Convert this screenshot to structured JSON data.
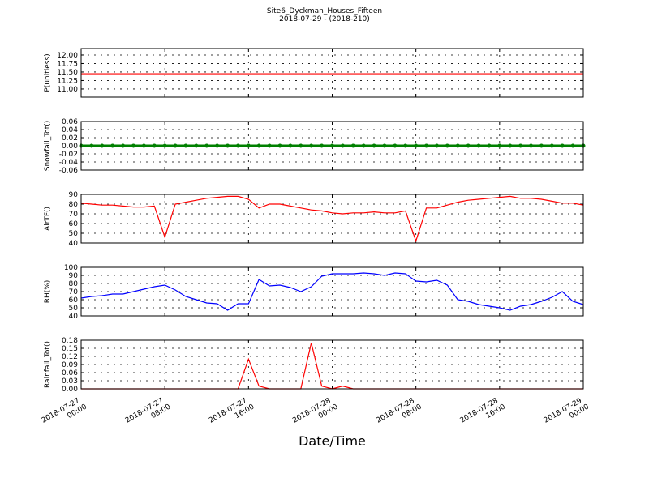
{
  "title": "Site6_Dyckman_Houses_Fifteen",
  "subtitle": "2018-07-29 - (2018-210)",
  "chart_data": [
    {
      "type": "line",
      "ylabel": "P(unitless)",
      "grid": true,
      "xlim": [
        "2018-07-27 00:00",
        "2018-07-29 00:00"
      ],
      "xticks": [
        "2018-07-27 00:00",
        "2018-07-27 08:00",
        "2018-07-27 16:00",
        "2018-07-28 00:00",
        "2018-07-28 08:00",
        "2018-07-28 16:00",
        "2018-07-29 00:00"
      ],
      "ylim": [
        10.76,
        12.19
      ],
      "yticks": [
        {
          "value": 11,
          "label": "11.00"
        },
        11.25,
        {
          "value": 11.5,
          "label": "11.50"
        },
        11.75,
        {
          "value": 12,
          "label": "12.00"
        }
      ],
      "x": [
        "2018-07-27 00:00",
        "2018-07-29 00:00"
      ],
      "series": [
        {
          "color": "#ff0000",
          "values": [
            11.45,
            11.45
          ]
        }
      ]
    },
    {
      "type": "line",
      "ylabel": "Snowfall_Tot()",
      "grid": true,
      "markers": true,
      "xlim": [
        "2018-07-27 00:00",
        "2018-07-29 00:00"
      ],
      "xticks": [
        "2018-07-27 00:00",
        "2018-07-27 08:00",
        "2018-07-27 16:00",
        "2018-07-28 00:00",
        "2018-07-28 08:00",
        "2018-07-28 16:00",
        "2018-07-29 00:00"
      ],
      "ylim": [
        -0.06,
        0.06
      ],
      "yticks": [
        -0.06,
        -0.04,
        -0.02,
        {
          "value": 0,
          "label": "0.00"
        },
        0.02,
        0.04,
        0.06
      ],
      "x": [
        "2018-07-27 00:00",
        "2018-07-27 01:00",
        "2018-07-27 02:00",
        "2018-07-27 03:00",
        "2018-07-27 04:00",
        "2018-07-27 05:00",
        "2018-07-27 06:00",
        "2018-07-27 07:00",
        "2018-07-27 08:00",
        "2018-07-27 09:00",
        "2018-07-27 10:00",
        "2018-07-27 11:00",
        "2018-07-27 12:00",
        "2018-07-27 13:00",
        "2018-07-27 14:00",
        "2018-07-27 15:00",
        "2018-07-27 16:00",
        "2018-07-27 17:00",
        "2018-07-27 18:00",
        "2018-07-27 19:00",
        "2018-07-27 20:00",
        "2018-07-27 21:00",
        "2018-07-27 22:00",
        "2018-07-27 23:00",
        "2018-07-28 00:00",
        "2018-07-28 01:00",
        "2018-07-28 02:00",
        "2018-07-28 03:00",
        "2018-07-28 04:00",
        "2018-07-28 05:00",
        "2018-07-28 06:00",
        "2018-07-28 07:00",
        "2018-07-28 08:00",
        "2018-07-28 09:00",
        "2018-07-28 10:00",
        "2018-07-28 11:00",
        "2018-07-28 12:00",
        "2018-07-28 13:00",
        "2018-07-28 14:00",
        "2018-07-28 15:00",
        "2018-07-28 16:00",
        "2018-07-28 17:00",
        "2018-07-28 18:00",
        "2018-07-28 19:00",
        "2018-07-28 20:00",
        "2018-07-28 21:00",
        "2018-07-28 22:00",
        "2018-07-28 23:00",
        "2018-07-29 00:00"
      ],
      "series": [
        {
          "color": "#008000",
          "values": [
            0,
            0,
            0,
            0,
            0,
            0,
            0,
            0,
            0,
            0,
            0,
            0,
            0,
            0,
            0,
            0,
            0,
            0,
            0,
            0,
            0,
            0,
            0,
            0,
            0,
            0,
            0,
            0,
            0,
            0,
            0,
            0,
            0,
            0,
            0,
            0,
            0,
            0,
            0,
            0,
            0,
            0,
            0,
            0,
            0,
            0,
            0,
            0,
            0
          ]
        }
      ]
    },
    {
      "type": "line",
      "ylabel": "AirTF()",
      "grid": true,
      "xlim": [
        "2018-07-27 00:00",
        "2018-07-29 00:00"
      ],
      "xticks": [
        "2018-07-27 00:00",
        "2018-07-27 08:00",
        "2018-07-27 16:00",
        "2018-07-28 00:00",
        "2018-07-28 08:00",
        "2018-07-28 16:00",
        "2018-07-29 00:00"
      ],
      "ylim": [
        40,
        90
      ],
      "yticks": [
        40,
        50,
        60,
        70,
        80,
        90
      ],
      "x": [
        "2018-07-27 00:00",
        "2018-07-27 01:00",
        "2018-07-27 02:00",
        "2018-07-27 03:00",
        "2018-07-27 04:00",
        "2018-07-27 05:00",
        "2018-07-27 06:00",
        "2018-07-27 07:00",
        "2018-07-27 08:00",
        "2018-07-27 09:00",
        "2018-07-27 10:00",
        "2018-07-27 11:00",
        "2018-07-27 12:00",
        "2018-07-27 13:00",
        "2018-07-27 14:00",
        "2018-07-27 15:00",
        "2018-07-27 16:00",
        "2018-07-27 17:00",
        "2018-07-27 18:00",
        "2018-07-27 19:00",
        "2018-07-27 20:00",
        "2018-07-27 21:00",
        "2018-07-27 22:00",
        "2018-07-27 23:00",
        "2018-07-28 00:00",
        "2018-07-28 01:00",
        "2018-07-28 02:00",
        "2018-07-28 03:00",
        "2018-07-28 04:00",
        "2018-07-28 05:00",
        "2018-07-28 06:00",
        "2018-07-28 07:00",
        "2018-07-28 08:00",
        "2018-07-28 09:00",
        "2018-07-28 10:00",
        "2018-07-28 11:00",
        "2018-07-28 12:00",
        "2018-07-28 13:00",
        "2018-07-28 14:00",
        "2018-07-28 15:00",
        "2018-07-28 16:00",
        "2018-07-28 17:00",
        "2018-07-28 18:00",
        "2018-07-28 19:00",
        "2018-07-28 20:00",
        "2018-07-28 21:00",
        "2018-07-28 22:00",
        "2018-07-28 23:00",
        "2018-07-29 00:00"
      ],
      "series": [
        {
          "color": "#ff0000",
          "values": [
            81,
            80,
            79,
            79,
            78,
            77,
            77,
            78,
            46,
            80,
            82,
            84,
            86,
            87,
            88,
            88,
            85,
            76,
            80,
            80,
            78,
            76,
            74,
            73,
            71,
            70,
            71,
            71,
            72,
            71,
            71,
            73,
            42,
            76,
            76,
            79,
            82,
            84,
            85,
            86,
            87,
            88,
            86,
            86,
            85,
            83,
            81,
            81,
            79
          ]
        }
      ]
    },
    {
      "type": "line",
      "ylabel": "RH(%)",
      "grid": true,
      "xlim": [
        "2018-07-27 00:00",
        "2018-07-29 00:00"
      ],
      "xticks": [
        "2018-07-27 00:00",
        "2018-07-27 08:00",
        "2018-07-27 16:00",
        "2018-07-28 00:00",
        "2018-07-28 08:00",
        "2018-07-28 16:00",
        "2018-07-29 00:00"
      ],
      "ylim": [
        40,
        100
      ],
      "yticks": [
        40,
        50,
        60,
        70,
        80,
        90,
        100
      ],
      "x": [
        "2018-07-27 00:00",
        "2018-07-27 01:00",
        "2018-07-27 02:00",
        "2018-07-27 03:00",
        "2018-07-27 04:00",
        "2018-07-27 05:00",
        "2018-07-27 06:00",
        "2018-07-27 07:00",
        "2018-07-27 08:00",
        "2018-07-27 09:00",
        "2018-07-27 10:00",
        "2018-07-27 11:00",
        "2018-07-27 12:00",
        "2018-07-27 13:00",
        "2018-07-27 14:00",
        "2018-07-27 15:00",
        "2018-07-27 16:00",
        "2018-07-27 17:00",
        "2018-07-27 18:00",
        "2018-07-27 19:00",
        "2018-07-27 20:00",
        "2018-07-27 21:00",
        "2018-07-27 22:00",
        "2018-07-27 23:00",
        "2018-07-28 00:00",
        "2018-07-28 01:00",
        "2018-07-28 02:00",
        "2018-07-28 03:00",
        "2018-07-28 04:00",
        "2018-07-28 05:00",
        "2018-07-28 06:00",
        "2018-07-28 07:00",
        "2018-07-28 08:00",
        "2018-07-28 09:00",
        "2018-07-28 10:00",
        "2018-07-28 11:00",
        "2018-07-28 12:00",
        "2018-07-28 13:00",
        "2018-07-28 14:00",
        "2018-07-28 15:00",
        "2018-07-28 16:00",
        "2018-07-28 17:00",
        "2018-07-28 18:00",
        "2018-07-28 19:00",
        "2018-07-28 20:00",
        "2018-07-28 21:00",
        "2018-07-28 22:00",
        "2018-07-28 23:00",
        "2018-07-29 00:00"
      ],
      "series": [
        {
          "color": "#0000ff",
          "values": [
            62,
            64,
            65,
            67,
            67,
            70,
            73,
            76,
            78,
            72,
            64,
            60,
            56,
            55,
            47,
            55,
            55,
            85,
            77,
            78,
            75,
            70,
            76,
            89,
            92,
            92,
            92,
            93,
            92,
            90,
            93,
            92,
            83,
            82,
            84,
            78,
            60,
            58,
            54,
            52,
            50,
            47,
            52,
            54,
            58,
            63,
            70,
            58,
            54
          ]
        }
      ]
    },
    {
      "type": "line",
      "ylabel": "Rainfall_Tot()",
      "xlabel": "Date/Time",
      "grid": true,
      "xlim": [
        "2018-07-27 00:00",
        "2018-07-29 00:00"
      ],
      "xticks": [
        "2018-07-27 00:00",
        "2018-07-27 08:00",
        "2018-07-27 16:00",
        "2018-07-28 00:00",
        "2018-07-28 08:00",
        "2018-07-28 16:00",
        "2018-07-29 00:00"
      ],
      "ylim": [
        0,
        0.18
      ],
      "yticks": [
        {
          "value": 0,
          "label": "0.00"
        },
        0.03,
        0.06,
        0.09,
        0.12,
        0.15,
        0.18
      ],
      "x": [
        "2018-07-27 00:00",
        "2018-07-27 01:00",
        "2018-07-27 02:00",
        "2018-07-27 03:00",
        "2018-07-27 04:00",
        "2018-07-27 05:00",
        "2018-07-27 06:00",
        "2018-07-27 07:00",
        "2018-07-27 08:00",
        "2018-07-27 09:00",
        "2018-07-27 10:00",
        "2018-07-27 11:00",
        "2018-07-27 12:00",
        "2018-07-27 13:00",
        "2018-07-27 14:00",
        "2018-07-27 15:00",
        "2018-07-27 16:00",
        "2018-07-27 17:00",
        "2018-07-27 18:00",
        "2018-07-27 19:00",
        "2018-07-27 20:00",
        "2018-07-27 21:00",
        "2018-07-27 22:00",
        "2018-07-27 23:00",
        "2018-07-28 00:00",
        "2018-07-28 01:00",
        "2018-07-28 02:00",
        "2018-07-28 03:00",
        "2018-07-28 04:00",
        "2018-07-28 05:00",
        "2018-07-28 06:00",
        "2018-07-28 07:00",
        "2018-07-28 08:00",
        "2018-07-28 09:00",
        "2018-07-28 10:00",
        "2018-07-28 11:00",
        "2018-07-28 12:00",
        "2018-07-28 13:00",
        "2018-07-28 14:00",
        "2018-07-28 15:00",
        "2018-07-28 16:00",
        "2018-07-28 17:00",
        "2018-07-28 18:00",
        "2018-07-28 19:00",
        "2018-07-28 20:00",
        "2018-07-28 21:00",
        "2018-07-28 22:00",
        "2018-07-28 23:00",
        "2018-07-29 00:00"
      ],
      "series": [
        {
          "color": "#ff0000",
          "values": [
            0,
            0,
            0,
            0,
            0,
            0,
            0,
            0,
            0,
            0,
            0,
            0,
            0,
            0,
            0,
            0,
            0.11,
            0.01,
            0,
            0,
            0,
            0,
            0.17,
            0.01,
            0,
            0.01,
            0,
            0,
            0,
            0,
            0,
            0,
            0,
            0,
            0,
            0,
            0,
            0,
            0,
            0,
            0,
            0,
            0,
            0,
            0,
            0,
            0,
            0,
            0
          ]
        }
      ]
    }
  ]
}
